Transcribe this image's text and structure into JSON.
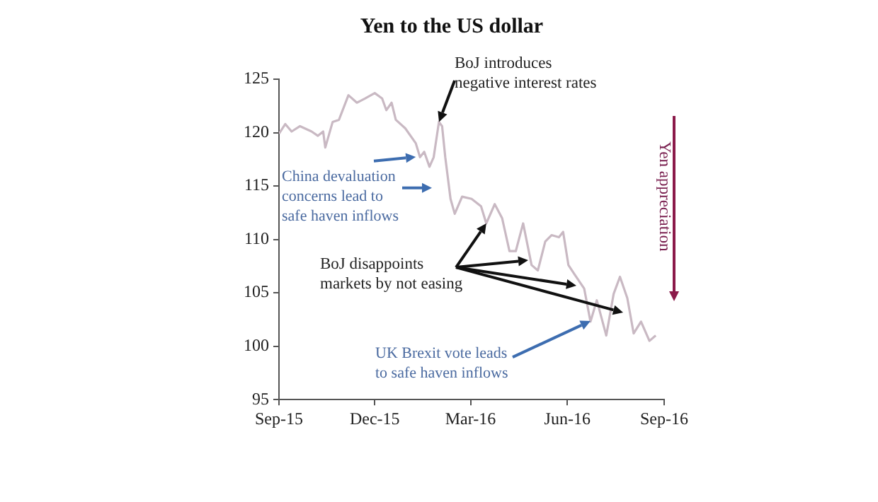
{
  "chart_data": {
    "type": "line",
    "title": "Yen to the US dollar",
    "x": [
      "2015-09-01",
      "2015-09-07",
      "2015-09-13",
      "2015-09-21",
      "2015-10-02",
      "2015-10-08",
      "2015-10-13",
      "2015-10-15",
      "2015-10-22",
      "2015-10-28",
      "2015-11-06",
      "2015-11-14",
      "2015-11-22",
      "2015-12-01",
      "2015-12-08",
      "2015-12-12",
      "2015-12-17",
      "2015-12-21",
      "2015-12-30",
      "2016-01-09",
      "2016-01-13",
      "2016-01-17",
      "2016-01-22",
      "2016-01-26",
      "2016-01-31",
      "2016-02-03",
      "2016-02-06",
      "2016-02-11",
      "2016-02-15",
      "2016-02-22",
      "2016-03-02",
      "2016-03-11",
      "2016-03-16",
      "2016-03-24",
      "2016-03-31",
      "2016-04-07",
      "2016-04-13",
      "2016-04-20",
      "2016-04-28",
      "2016-05-04",
      "2016-05-11",
      "2016-05-17",
      "2016-05-24",
      "2016-05-28",
      "2016-06-02",
      "2016-06-08",
      "2016-06-17",
      "2016-06-23",
      "2016-06-29",
      "2016-07-08",
      "2016-07-15",
      "2016-07-21",
      "2016-07-28",
      "2016-08-03",
      "2016-08-10",
      "2016-08-18",
      "2016-08-24"
    ],
    "values": [
      119.9,
      120.8,
      120.1,
      120.6,
      120.1,
      119.7,
      120.1,
      118.6,
      121.0,
      121.2,
      123.5,
      122.8,
      123.2,
      123.7,
      123.2,
      122.1,
      122.8,
      121.2,
      120.4,
      119.0,
      117.7,
      118.2,
      116.8,
      117.7,
      121.0,
      120.6,
      117.7,
      113.8,
      112.4,
      114.0,
      113.8,
      113.1,
      111.5,
      113.3,
      112.0,
      108.9,
      108.9,
      111.5,
      107.6,
      107.1,
      109.8,
      110.4,
      110.2,
      110.7,
      107.6,
      106.7,
      105.4,
      102.3,
      104.3,
      101.0,
      104.9,
      106.5,
      104.5,
      101.2,
      102.3,
      100.5,
      101.0
    ],
    "color": "#c9b9c3",
    "xlim": [
      "2015-09-01",
      "2016-09-01"
    ],
    "xticks": [
      {
        "value": "2015-09-01",
        "label": "Sep-15"
      },
      {
        "value": "2015-12-01",
        "label": "Dec-15"
      },
      {
        "value": "2016-03-01",
        "label": "Mar-16"
      },
      {
        "value": "2016-06-01",
        "label": "Jun-16"
      },
      {
        "value": "2016-09-01",
        "label": "Sep-16"
      }
    ],
    "ylim": [
      95,
      125
    ],
    "yticks": [
      95,
      100,
      105,
      110,
      115,
      120,
      125
    ],
    "annotations": [
      {
        "text": "BoJ introduces negative interest rates",
        "x": "2016-01-31",
        "y": 121.0
      },
      {
        "text": "China devaluation concerns lead to safe haven inflows",
        "x": "2016-01-09",
        "y": 117.7
      },
      {
        "text": "BoJ disappoints markets by not easing",
        "x": "2016-03-16",
        "y": 111.5
      },
      {
        "text": "UK Brexit vote leads to safe haven inflows",
        "x": "2016-06-23",
        "y": 102.3
      },
      "Yen appreciation"
    ]
  }
}
